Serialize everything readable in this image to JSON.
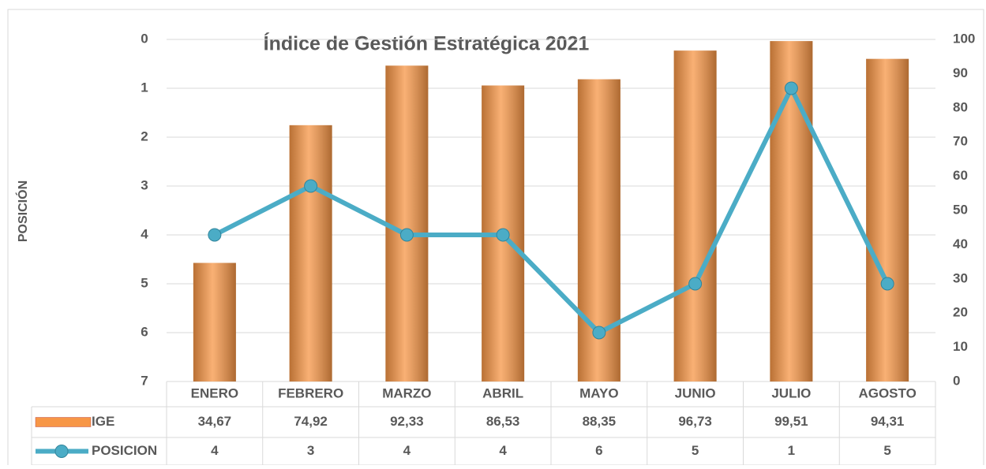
{
  "chart_data": {
    "type": "bar+line",
    "title": "Índice de Gestión Estratégica 2021",
    "ylabel": "POSICIÓN",
    "categories": [
      "ENERO",
      "FEBRERO",
      "MARZO",
      "ABRIL",
      "MAYO",
      "JUNIO",
      "JULIO",
      "AGOSTO"
    ],
    "series": [
      {
        "name": "IGE",
        "type": "bar",
        "axis": "y2",
        "color": "#f79646",
        "values": [
          34.67,
          74.92,
          92.33,
          86.53,
          88.35,
          96.73,
          99.51,
          94.31
        ],
        "value_labels": [
          "34,67",
          "74,92",
          "92,33",
          "86,53",
          "88,35",
          "96,73",
          "99,51",
          "94,31"
        ]
      },
      {
        "name": "POSICION",
        "type": "line",
        "axis": "y",
        "color": "#4bacc6",
        "values": [
          4,
          3,
          4,
          4,
          6,
          5,
          1,
          5
        ]
      }
    ],
    "ylim": [
      0,
      7
    ],
    "yinverted": true,
    "yticks": [
      0,
      1,
      2,
      3,
      4,
      5,
      6,
      7
    ],
    "y2lim": [
      0,
      100
    ],
    "y2ticks": [
      0,
      10,
      20,
      30,
      40,
      50,
      60,
      70,
      80,
      90,
      100
    ],
    "grid": true,
    "data_table": true
  }
}
